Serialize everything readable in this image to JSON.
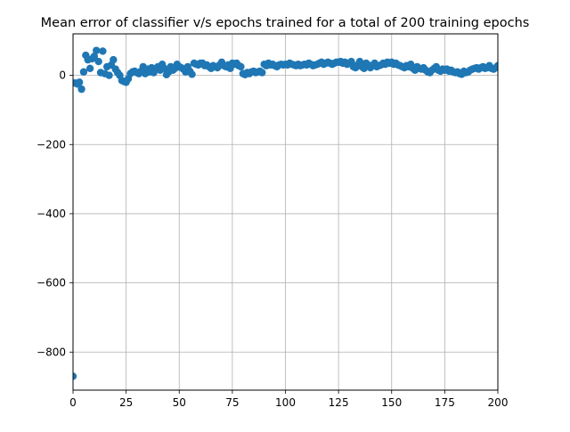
{
  "chart_data": {
    "type": "scatter",
    "title": "Mean error of classifier v/s epochs trained for a total of 200 training epochs",
    "xlabel": "",
    "ylabel": "",
    "xlim": [
      0,
      200
    ],
    "ylim": [
      -910,
      120
    ],
    "xticks": [
      0,
      25,
      50,
      75,
      100,
      125,
      150,
      175,
      200
    ],
    "xtick_labels": [
      "0",
      "25",
      "50",
      "75",
      "100",
      "125",
      "150",
      "175",
      "200"
    ],
    "yticks": [
      0,
      -200,
      -400,
      -600,
      -800
    ],
    "ytick_labels": [
      "0",
      "−200",
      "−400",
      "−600",
      "−800"
    ],
    "grid": true,
    "marker_color": "#1f77b4",
    "x": [
      0,
      1,
      2,
      3,
      4,
      5,
      6,
      7,
      8,
      9,
      10,
      11,
      12,
      13,
      14,
      15,
      16,
      17,
      18,
      19,
      20,
      21,
      22,
      23,
      24,
      25,
      26,
      27,
      28,
      29,
      30,
      31,
      32,
      33,
      34,
      35,
      36,
      37,
      38,
      39,
      40,
      41,
      42,
      43,
      44,
      45,
      46,
      47,
      48,
      49,
      50,
      51,
      52,
      53,
      54,
      55,
      56,
      57,
      58,
      59,
      60,
      61,
      62,
      63,
      64,
      65,
      66,
      67,
      68,
      69,
      70,
      71,
      72,
      73,
      74,
      75,
      76,
      77,
      78,
      79,
      80,
      81,
      82,
      83,
      84,
      85,
      86,
      87,
      88,
      89,
      90,
      91,
      92,
      93,
      94,
      95,
      96,
      97,
      98,
      99,
      100,
      101,
      102,
      103,
      104,
      105,
      106,
      107,
      108,
      109,
      110,
      111,
      112,
      113,
      114,
      115,
      116,
      117,
      118,
      119,
      120,
      121,
      122,
      123,
      124,
      125,
      126,
      127,
      128,
      129,
      130,
      131,
      132,
      133,
      134,
      135,
      136,
      137,
      138,
      139,
      140,
      141,
      142,
      143,
      144,
      145,
      146,
      147,
      148,
      149,
      150,
      151,
      152,
      153,
      154,
      155,
      156,
      157,
      158,
      159,
      160,
      161,
      162,
      163,
      164,
      165,
      166,
      167,
      168,
      169,
      170,
      171,
      172,
      173,
      174,
      175,
      176,
      177,
      178,
      179,
      180,
      181,
      182,
      183,
      184,
      185,
      186,
      187,
      188,
      189,
      190,
      191,
      192,
      193,
      194,
      195,
      196,
      197,
      198,
      199,
      200
    ],
    "values": [
      -870,
      -22,
      -25,
      -20,
      -40,
      10,
      58,
      45,
      20,
      48,
      55,
      72,
      40,
      8,
      70,
      5,
      25,
      0,
      30,
      45,
      18,
      8,
      0,
      -15,
      -18,
      -20,
      -10,
      5,
      10,
      12,
      8,
      5,
      12,
      25,
      5,
      18,
      10,
      22,
      8,
      20,
      25,
      15,
      32,
      20,
      2,
      10,
      25,
      15,
      20,
      32,
      25,
      22,
      18,
      10,
      25,
      12,
      3,
      35,
      32,
      30,
      35,
      35,
      28,
      30,
      25,
      20,
      28,
      25,
      22,
      30,
      38,
      28,
      25,
      30,
      20,
      35,
      32,
      35,
      28,
      25,
      5,
      2,
      8,
      5,
      10,
      12,
      8,
      10,
      12,
      8,
      32,
      28,
      35,
      30,
      32,
      28,
      25,
      30,
      32,
      30,
      32,
      30,
      35,
      32,
      30,
      28,
      32,
      28,
      30,
      32,
      30,
      35,
      32,
      28,
      30,
      32,
      35,
      38,
      32,
      35,
      38,
      35,
      32,
      35,
      38,
      38,
      40,
      35,
      38,
      32,
      35,
      40,
      25,
      22,
      30,
      40,
      25,
      20,
      35,
      30,
      22,
      28,
      35,
      25,
      28,
      30,
      35,
      32,
      38,
      35,
      38,
      32,
      35,
      30,
      28,
      25,
      22,
      28,
      25,
      32,
      20,
      15,
      25,
      20,
      18,
      22,
      15,
      10,
      8,
      15,
      20,
      25,
      15,
      12,
      18,
      15,
      18,
      12,
      15,
      10,
      8,
      10,
      5,
      3,
      12,
      8,
      10,
      15,
      18,
      20,
      22,
      18,
      22,
      25,
      20,
      22,
      28,
      20,
      18,
      22,
      28
    ]
  }
}
